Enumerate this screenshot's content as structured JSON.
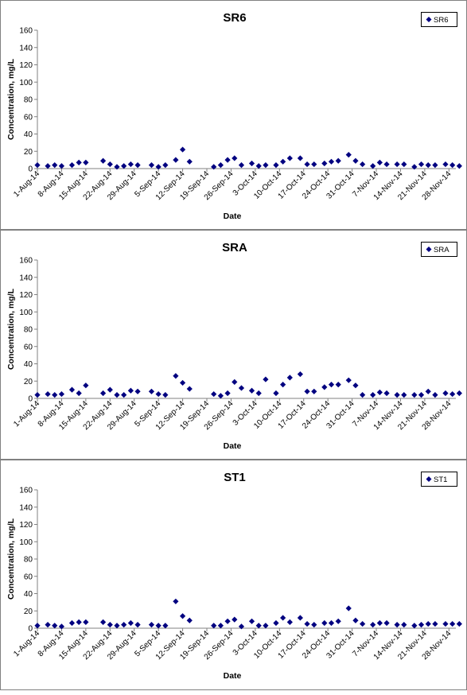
{
  "chart_data": [
    {
      "type": "scatter",
      "title": "SR6",
      "xlabel": "Date",
      "ylabel": "Concentration, mg/L",
      "legend": "SR6",
      "legend_position": "top-right",
      "grid": false,
      "ylim": [
        0,
        160
      ],
      "yticks": [
        0,
        20,
        40,
        60,
        80,
        100,
        120,
        140,
        160
      ],
      "xlim": [
        "2014-08-01",
        "2014-11-30"
      ],
      "xticks": [
        "1-Aug-14",
        "8-Aug-14",
        "15-Aug-14",
        "22-Aug-14",
        "29-Aug-14",
        "5-Sep-14",
        "12-Sep-14",
        "19-Sep-14",
        "26-Sep-14",
        "3-Oct-14",
        "10-Oct-14",
        "17-Oct-14",
        "24-Oct-14",
        "31-Oct-14",
        "7-Nov-14",
        "14-Nov-14",
        "21-Nov-14",
        "28-Nov-14"
      ],
      "series": [
        {
          "name": "SR6",
          "points": [
            {
              "x": "2014-08-01",
              "y": 4
            },
            {
              "x": "2014-08-04",
              "y": 3
            },
            {
              "x": "2014-08-06",
              "y": 4
            },
            {
              "x": "2014-08-08",
              "y": 3
            },
            {
              "x": "2014-08-11",
              "y": 4
            },
            {
              "x": "2014-08-13",
              "y": 7
            },
            {
              "x": "2014-08-15",
              "y": 7
            },
            {
              "x": "2014-08-20",
              "y": 9
            },
            {
              "x": "2014-08-22",
              "y": 5
            },
            {
              "x": "2014-08-24",
              "y": 2
            },
            {
              "x": "2014-08-26",
              "y": 3
            },
            {
              "x": "2014-08-28",
              "y": 5
            },
            {
              "x": "2014-08-30",
              "y": 4
            },
            {
              "x": "2014-09-03",
              "y": 4
            },
            {
              "x": "2014-09-05",
              "y": 2
            },
            {
              "x": "2014-09-07",
              "y": 4
            },
            {
              "x": "2014-09-10",
              "y": 10
            },
            {
              "x": "2014-09-12",
              "y": 22
            },
            {
              "x": "2014-09-14",
              "y": 8
            },
            {
              "x": "2014-09-21",
              "y": 2
            },
            {
              "x": "2014-09-23",
              "y": 4
            },
            {
              "x": "2014-09-25",
              "y": 10
            },
            {
              "x": "2014-09-27",
              "y": 12
            },
            {
              "x": "2014-09-29",
              "y": 4
            },
            {
              "x": "2014-10-02",
              "y": 6
            },
            {
              "x": "2014-10-04",
              "y": 3
            },
            {
              "x": "2014-10-06",
              "y": 4
            },
            {
              "x": "2014-10-09",
              "y": 4
            },
            {
              "x": "2014-10-11",
              "y": 8
            },
            {
              "x": "2014-10-13",
              "y": 12
            },
            {
              "x": "2014-10-16",
              "y": 12
            },
            {
              "x": "2014-10-18",
              "y": 5
            },
            {
              "x": "2014-10-20",
              "y": 5
            },
            {
              "x": "2014-10-23",
              "y": 6
            },
            {
              "x": "2014-10-25",
              "y": 8
            },
            {
              "x": "2014-10-27",
              "y": 9
            },
            {
              "x": "2014-10-30",
              "y": 16
            },
            {
              "x": "2014-11-01",
              "y": 9
            },
            {
              "x": "2014-11-03",
              "y": 5
            },
            {
              "x": "2014-11-06",
              "y": 3
            },
            {
              "x": "2014-11-08",
              "y": 7
            },
            {
              "x": "2014-11-10",
              "y": 5
            },
            {
              "x": "2014-11-13",
              "y": 5
            },
            {
              "x": "2014-11-15",
              "y": 5
            },
            {
              "x": "2014-11-18",
              "y": 2
            },
            {
              "x": "2014-11-20",
              "y": 5
            },
            {
              "x": "2014-11-22",
              "y": 4
            },
            {
              "x": "2014-11-24",
              "y": 4
            },
            {
              "x": "2014-11-27",
              "y": 5
            },
            {
              "x": "2014-11-29",
              "y": 4
            },
            {
              "x": "2014-12-01",
              "y": 3
            }
          ]
        }
      ]
    },
    {
      "type": "scatter",
      "title": "SRA",
      "xlabel": "Date",
      "ylabel": "Concentration, mg/L",
      "legend": "SRA",
      "legend_position": "top-right",
      "grid": false,
      "ylim": [
        0,
        160
      ],
      "yticks": [
        0,
        20,
        40,
        60,
        80,
        100,
        120,
        140,
        160
      ],
      "xlim": [
        "2014-08-01",
        "2014-11-30"
      ],
      "xticks": [
        "1-Aug-14",
        "8-Aug-14",
        "15-Aug-14",
        "22-Aug-14",
        "29-Aug-14",
        "5-Sep-14",
        "12-Sep-14",
        "19-Sep-14",
        "26-Sep-14",
        "3-Oct-14",
        "10-Oct-14",
        "17-Oct-14",
        "24-Oct-14",
        "31-Oct-14",
        "7-Nov-14",
        "14-Nov-14",
        "21-Nov-14",
        "28-Nov-14"
      ],
      "series": [
        {
          "name": "SRA",
          "points": [
            {
              "x": "2014-08-01",
              "y": 4
            },
            {
              "x": "2014-08-04",
              "y": 5
            },
            {
              "x": "2014-08-06",
              "y": 4
            },
            {
              "x": "2014-08-08",
              "y": 5
            },
            {
              "x": "2014-08-11",
              "y": 10
            },
            {
              "x": "2014-08-13",
              "y": 6
            },
            {
              "x": "2014-08-15",
              "y": 15
            },
            {
              "x": "2014-08-20",
              "y": 6
            },
            {
              "x": "2014-08-22",
              "y": 10
            },
            {
              "x": "2014-08-24",
              "y": 4
            },
            {
              "x": "2014-08-26",
              "y": 4
            },
            {
              "x": "2014-08-28",
              "y": 9
            },
            {
              "x": "2014-08-30",
              "y": 8
            },
            {
              "x": "2014-09-03",
              "y": 8
            },
            {
              "x": "2014-09-05",
              "y": 5
            },
            {
              "x": "2014-09-07",
              "y": 4
            },
            {
              "x": "2014-09-10",
              "y": 26
            },
            {
              "x": "2014-09-12",
              "y": 18
            },
            {
              "x": "2014-09-14",
              "y": 11
            },
            {
              "x": "2014-09-21",
              "y": 5
            },
            {
              "x": "2014-09-23",
              "y": 3
            },
            {
              "x": "2014-09-25",
              "y": 6
            },
            {
              "x": "2014-09-27",
              "y": 19
            },
            {
              "x": "2014-09-29",
              "y": 12
            },
            {
              "x": "2014-10-02",
              "y": 9
            },
            {
              "x": "2014-10-04",
              "y": 6
            },
            {
              "x": "2014-10-06",
              "y": 22
            },
            {
              "x": "2014-10-09",
              "y": 6
            },
            {
              "x": "2014-10-11",
              "y": 16
            },
            {
              "x": "2014-10-13",
              "y": 24
            },
            {
              "x": "2014-10-16",
              "y": 28
            },
            {
              "x": "2014-10-18",
              "y": 8
            },
            {
              "x": "2014-10-20",
              "y": 8
            },
            {
              "x": "2014-10-23",
              "y": 13
            },
            {
              "x": "2014-10-25",
              "y": 16
            },
            {
              "x": "2014-10-27",
              "y": 16
            },
            {
              "x": "2014-10-30",
              "y": 21
            },
            {
              "x": "2014-11-01",
              "y": 15
            },
            {
              "x": "2014-11-03",
              "y": 4
            },
            {
              "x": "2014-11-06",
              "y": 4
            },
            {
              "x": "2014-11-08",
              "y": 7
            },
            {
              "x": "2014-11-10",
              "y": 6
            },
            {
              "x": "2014-11-13",
              "y": 4
            },
            {
              "x": "2014-11-15",
              "y": 4
            },
            {
              "x": "2014-11-18",
              "y": 4
            },
            {
              "x": "2014-11-20",
              "y": 4
            },
            {
              "x": "2014-11-22",
              "y": 8
            },
            {
              "x": "2014-11-24",
              "y": 4
            },
            {
              "x": "2014-11-27",
              "y": 6
            },
            {
              "x": "2014-11-29",
              "y": 5
            },
            {
              "x": "2014-12-01",
              "y": 6
            }
          ]
        }
      ]
    },
    {
      "type": "scatter",
      "title": "ST1",
      "xlabel": "Date",
      "ylabel": "Concentration, mg/L",
      "legend": "ST1",
      "legend_position": "top-right",
      "grid": false,
      "ylim": [
        0,
        160
      ],
      "yticks": [
        0,
        20,
        40,
        60,
        80,
        100,
        120,
        140,
        160
      ],
      "xlim": [
        "2014-08-01",
        "2014-11-30"
      ],
      "xticks": [
        "1-Aug-14",
        "8-Aug-14",
        "15-Aug-14",
        "22-Aug-14",
        "29-Aug-14",
        "5-Sep-14",
        "12-Sep-14",
        "19-Sep-14",
        "26-Sep-14",
        "3-Oct-14",
        "10-Oct-14",
        "17-Oct-14",
        "24-Oct-14",
        "31-Oct-14",
        "7-Nov-14",
        "14-Nov-14",
        "21-Nov-14",
        "28-Nov-14"
      ],
      "series": [
        {
          "name": "ST1",
          "points": [
            {
              "x": "2014-08-01",
              "y": 3
            },
            {
              "x": "2014-08-04",
              "y": 4
            },
            {
              "x": "2014-08-06",
              "y": 3
            },
            {
              "x": "2014-08-08",
              "y": 2
            },
            {
              "x": "2014-08-11",
              "y": 6
            },
            {
              "x": "2014-08-13",
              "y": 7
            },
            {
              "x": "2014-08-15",
              "y": 7
            },
            {
              "x": "2014-08-20",
              "y": 7
            },
            {
              "x": "2014-08-22",
              "y": 4
            },
            {
              "x": "2014-08-24",
              "y": 3
            },
            {
              "x": "2014-08-26",
              "y": 4
            },
            {
              "x": "2014-08-28",
              "y": 6
            },
            {
              "x": "2014-08-30",
              "y": 4
            },
            {
              "x": "2014-09-03",
              "y": 4
            },
            {
              "x": "2014-09-05",
              "y": 3
            },
            {
              "x": "2014-09-07",
              "y": 3
            },
            {
              "x": "2014-09-10",
              "y": 31
            },
            {
              "x": "2014-09-12",
              "y": 14
            },
            {
              "x": "2014-09-14",
              "y": 9
            },
            {
              "x": "2014-09-21",
              "y": 3
            },
            {
              "x": "2014-09-23",
              "y": 3
            },
            {
              "x": "2014-09-25",
              "y": 8
            },
            {
              "x": "2014-09-27",
              "y": 10
            },
            {
              "x": "2014-09-29",
              "y": 2
            },
            {
              "x": "2014-10-02",
              "y": 8
            },
            {
              "x": "2014-10-04",
              "y": 3
            },
            {
              "x": "2014-10-06",
              "y": 3
            },
            {
              "x": "2014-10-09",
              "y": 6
            },
            {
              "x": "2014-10-11",
              "y": 12
            },
            {
              "x": "2014-10-13",
              "y": 7
            },
            {
              "x": "2014-10-16",
              "y": 12
            },
            {
              "x": "2014-10-18",
              "y": 5
            },
            {
              "x": "2014-10-20",
              "y": 4
            },
            {
              "x": "2014-10-23",
              "y": 6
            },
            {
              "x": "2014-10-25",
              "y": 6
            },
            {
              "x": "2014-10-27",
              "y": 8
            },
            {
              "x": "2014-10-30",
              "y": 23
            },
            {
              "x": "2014-11-01",
              "y": 9
            },
            {
              "x": "2014-11-03",
              "y": 5
            },
            {
              "x": "2014-11-06",
              "y": 4
            },
            {
              "x": "2014-11-08",
              "y": 6
            },
            {
              "x": "2014-11-10",
              "y": 6
            },
            {
              "x": "2014-11-13",
              "y": 4
            },
            {
              "x": "2014-11-15",
              "y": 4
            },
            {
              "x": "2014-11-18",
              "y": 3
            },
            {
              "x": "2014-11-20",
              "y": 4
            },
            {
              "x": "2014-11-22",
              "y": 5
            },
            {
              "x": "2014-11-24",
              "y": 5
            },
            {
              "x": "2014-11-27",
              "y": 5
            },
            {
              "x": "2014-11-29",
              "y": 5
            },
            {
              "x": "2014-12-01",
              "y": 5
            }
          ]
        }
      ]
    }
  ],
  "colors": {
    "marker": "#000080",
    "axis": "#808080",
    "panel_border": "#808080",
    "text": "#000000"
  }
}
